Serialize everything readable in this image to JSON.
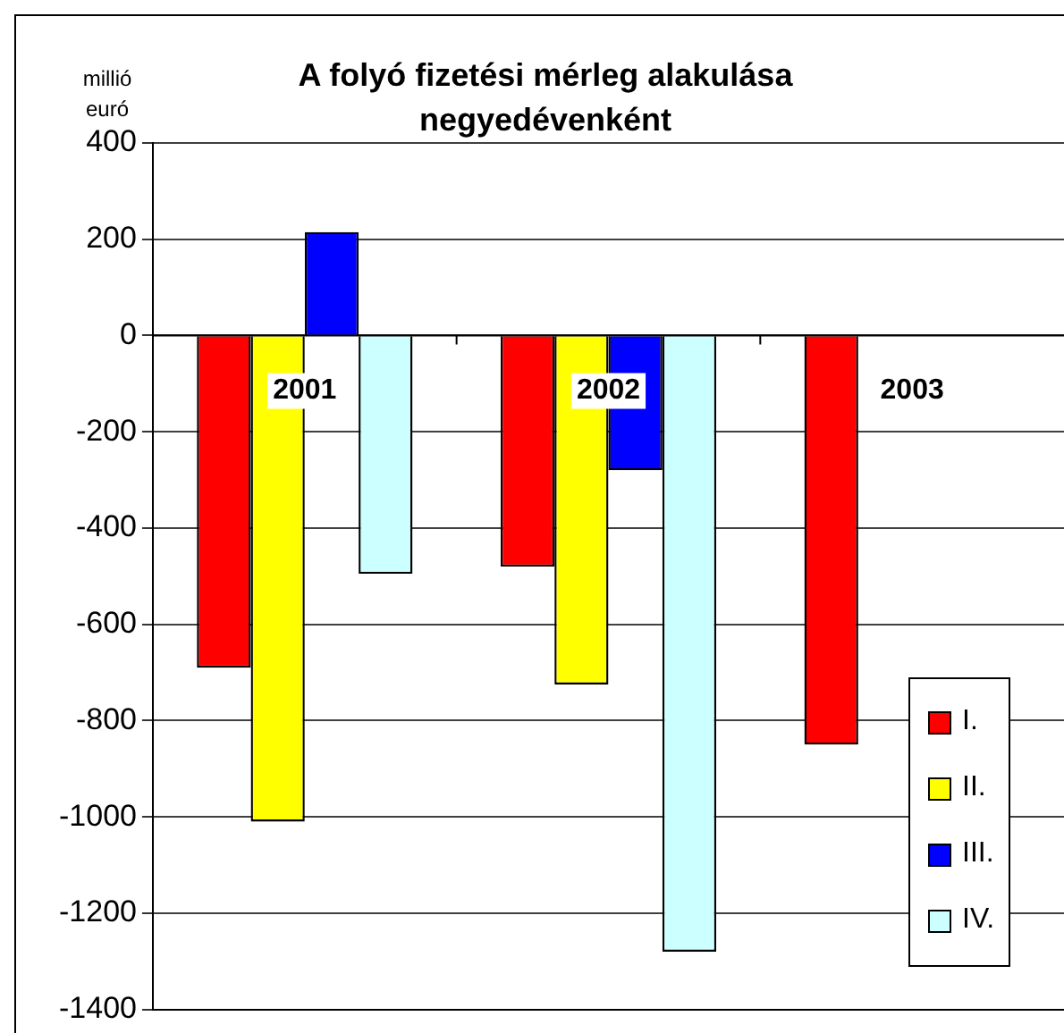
{
  "chart_data": {
    "type": "bar",
    "title": "A folyó fizetési mérleg alakulása negyedévenként",
    "ylabel": "millió euró",
    "categories": [
      "2001",
      "2002",
      "2003"
    ],
    "series": [
      {
        "name": "I.",
        "color": "#ff0000",
        "values": [
          -690,
          -480,
          -850
        ]
      },
      {
        "name": "II.",
        "color": "#ffff00",
        "values": [
          -1010,
          -725,
          null
        ]
      },
      {
        "name": "III.",
        "color": "#0000ff",
        "values": [
          215,
          -280,
          null
        ]
      },
      {
        "name": "IV.",
        "color": "#ccffff",
        "values": [
          -495,
          -1280,
          null
        ]
      }
    ],
    "ylim": [
      -1400,
      400
    ],
    "yticks": [
      -1400,
      -1200,
      -1000,
      -800,
      -600,
      -400,
      -200,
      0,
      200,
      400
    ],
    "grid": "y",
    "legend": "bottom right"
  }
}
